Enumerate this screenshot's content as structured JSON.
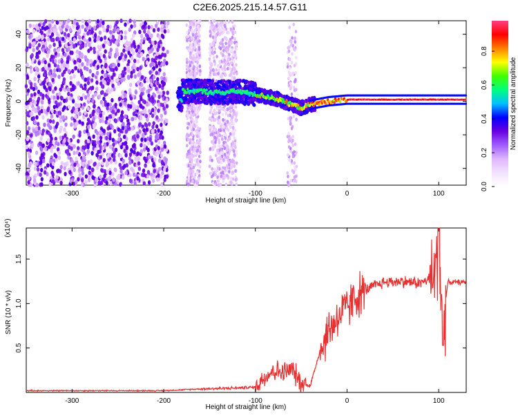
{
  "title": "C2E6.2025.215.14.57.G11",
  "chart_data": [
    {
      "type": "heatmap",
      "xlabel": "Height of straight line (km)",
      "ylabel": "Frequency (Hz)",
      "xlim": [
        -350,
        130
      ],
      "ylim": [
        -50,
        48
      ],
      "x_ticks": [
        -300,
        -200,
        -100,
        0,
        100
      ],
      "y_ticks": [
        -40,
        -20,
        0,
        20,
        40
      ],
      "colorbar": {
        "label": "Normalized spectral amplitude",
        "range": [
          0,
          0.98
        ],
        "ticks": [
          0.0,
          0.2,
          0.4,
          0.6,
          0.8
        ],
        "tick_labels": [
          "0.0",
          "0.2",
          "0.4",
          "0.6",
          "0.8"
        ],
        "colors": [
          "#ffffff",
          "#f2e2ff",
          "#e0b6ff",
          "#a05cff",
          "#6a00e0",
          "#0000ff",
          "#00c0ff",
          "#00ff80",
          "#40ff00",
          "#ffff00",
          "#ff8000",
          "#ff0000",
          "#ff4080"
        ]
      },
      "ridge": [
        {
          "x": -180,
          "f": 6
        },
        {
          "x": -160,
          "f": 6
        },
        {
          "x": -140,
          "f": 5
        },
        {
          "x": -120,
          "f": 6
        },
        {
          "x": -100,
          "f": 4
        },
        {
          "x": -80,
          "f": 2
        },
        {
          "x": -60,
          "f": -2
        },
        {
          "x": -50,
          "f": -4
        },
        {
          "x": -40,
          "f": -2
        },
        {
          "x": -20,
          "f": 0
        },
        {
          "x": 0,
          "f": 1
        },
        {
          "x": 40,
          "f": 1
        },
        {
          "x": 80,
          "f": 1
        },
        {
          "x": 130,
          "f": 1
        }
      ]
    },
    {
      "type": "line",
      "xlabel": "Height of straight line (km)",
      "ylabel": "SNR (10 * v/v)",
      "y_multiplier": "(x10⁴)",
      "xlim": [
        -350,
        130
      ],
      "ylim": [
        0,
        1.85
      ],
      "x_ticks": [
        -300,
        -200,
        -100,
        0,
        100
      ],
      "y_ticks": [
        0.5,
        1.0,
        1.5
      ],
      "y_tick_labels": [
        "0.5",
        "1.0",
        "1.5"
      ],
      "color": "#e83030",
      "series_units": "x10^4",
      "x": [
        -350,
        -250,
        -200,
        -160,
        -120,
        -100,
        -90,
        -80,
        -70,
        -60,
        -50,
        -40,
        -30,
        -20,
        -10,
        0,
        10,
        20,
        30,
        40,
        60,
        80,
        95,
        100,
        105,
        110,
        130
      ],
      "y": [
        0.02,
        0.02,
        0.02,
        0.04,
        0.05,
        0.06,
        0.18,
        0.25,
        0.22,
        0.26,
        0.1,
        0.08,
        0.45,
        0.7,
        0.85,
        0.95,
        1.08,
        1.15,
        1.2,
        1.24,
        1.25,
        1.23,
        1.3,
        1.55,
        0.8,
        1.24,
        1.24
      ]
    }
  ]
}
